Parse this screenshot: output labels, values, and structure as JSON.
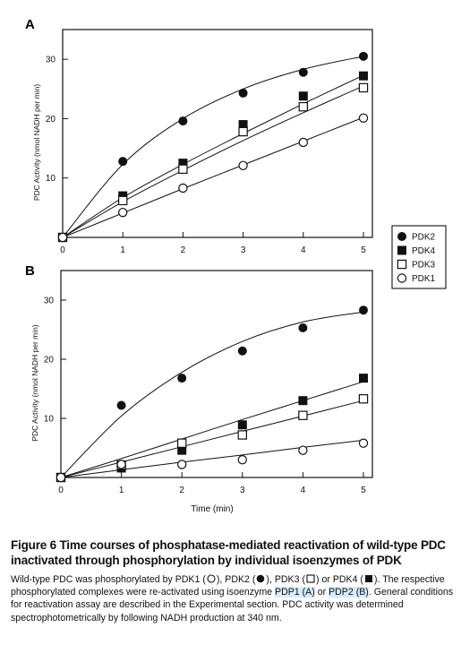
{
  "chart_data": [
    {
      "panel": "A",
      "type": "scatter",
      "title": "",
      "xlabel": "",
      "ylabel": "PDC Activity (nmol NADH per min)",
      "xlim": [
        0,
        5
      ],
      "ylim": [
        0,
        35
      ],
      "xticks": [
        0,
        1,
        2,
        3,
        4,
        5
      ],
      "yticks": [
        10,
        20,
        30
      ],
      "grid": false,
      "series": [
        {
          "name": "PDK2",
          "marker": "filled-circle",
          "x": [
            0,
            1,
            2,
            3,
            4,
            5
          ],
          "y": [
            0,
            12.8,
            19.6,
            24.3,
            27.8,
            30.5
          ]
        },
        {
          "name": "PDK4",
          "marker": "filled-square",
          "x": [
            0,
            1,
            2,
            3,
            4,
            5
          ],
          "y": [
            0,
            7.0,
            12.5,
            19.0,
            23.8,
            27.2
          ]
        },
        {
          "name": "PDK3",
          "marker": "open-square",
          "x": [
            0,
            1,
            2,
            3,
            4,
            5
          ],
          "y": [
            0,
            6.2,
            11.5,
            17.8,
            22.0,
            25.2
          ]
        },
        {
          "name": "PDK1",
          "marker": "open-circle",
          "x": [
            0,
            1,
            2,
            3,
            4,
            5
          ],
          "y": [
            0,
            4.2,
            8.3,
            12.1,
            16.0,
            20.1
          ]
        }
      ],
      "fits": {
        "PDK2": [
          0,
          1,
          2,
          3,
          4,
          5
        ],
        "PDK2_y": [
          0,
          12.3,
          20.0,
          25.0,
          28.3,
          30.5
        ],
        "PDK4_y": [
          0,
          6.7,
          12.3,
          17.5,
          22.5,
          27.3
        ],
        "PDK3_y": [
          0,
          6.0,
          11.3,
          16.3,
          21.0,
          25.5
        ],
        "PDK1_y": [
          0,
          4.1,
          8.2,
          12.2,
          16.2,
          20.2
        ]
      }
    },
    {
      "panel": "B",
      "type": "scatter",
      "title": "",
      "xlabel": "Time (min)",
      "ylabel": "PDC Activity (nmol NADH per min)",
      "xlim": [
        0,
        5
      ],
      "ylim": [
        0,
        35
      ],
      "xticks": [
        0,
        1,
        2,
        3,
        4,
        5
      ],
      "yticks": [
        10,
        20,
        30
      ],
      "grid": false,
      "series": [
        {
          "name": "PDK2",
          "marker": "filled-circle",
          "x": [
            0,
            1,
            2,
            3,
            4,
            5
          ],
          "y": [
            0,
            12.2,
            16.8,
            21.4,
            25.3,
            28.3
          ]
        },
        {
          "name": "PDK4",
          "marker": "filled-square",
          "x": [
            0,
            1,
            2,
            3,
            4,
            5
          ],
          "y": [
            0,
            1.6,
            4.6,
            8.9,
            13.0,
            16.8
          ]
        },
        {
          "name": "PDK3",
          "marker": "open-square",
          "x": [
            0,
            1,
            2,
            3,
            4,
            5
          ],
          "y": [
            0,
            2.1,
            5.8,
            7.2,
            10.5,
            13.3
          ]
        },
        {
          "name": "PDK1",
          "marker": "open-circle",
          "x": [
            0,
            1,
            2,
            3,
            4,
            5
          ],
          "y": [
            0,
            2.2,
            2.2,
            3.0,
            4.6,
            5.8
          ]
        }
      ],
      "fits": {
        "PDK2_y": [
          0,
          10.4,
          17.8,
          23.0,
          26.3,
          28.0
        ],
        "PDK4_y": [
          0,
          3.2,
          6.5,
          9.8,
          13.0,
          16.2
        ],
        "PDK3_y": [
          0,
          2.6,
          5.2,
          7.8,
          10.4,
          13.0
        ],
        "PDK1_y": [
          0,
          1.3,
          2.6,
          3.8,
          5.1,
          6.3
        ]
      }
    }
  ],
  "legend": {
    "placement": "right, between panels",
    "entries": [
      {
        "label": "PDK2",
        "marker": "filled-circle"
      },
      {
        "label": "PDK4",
        "marker": "filled-square"
      },
      {
        "label": "PDK3",
        "marker": "open-square"
      },
      {
        "label": "PDK1",
        "marker": "open-circle"
      }
    ]
  },
  "panels": {
    "a_letter": "A",
    "b_letter": "B"
  },
  "caption": {
    "title": "Figure 6    Time courses of phosphatase-mediated reactivation of wild-type PDC inactivated through phosphorylation by individual isoenzymes of PDK",
    "body_1": "Wild-type PDC was phosphorylated by PDK1 (",
    "body_2": "), PDK2 (",
    "body_3": "), PDK3 (",
    "body_4": ") or PDK4 (",
    "body_5": "). The respective phosphorylated complexes were re-activated using isoenzyme ",
    "hl_1": "PDP1 (A)",
    "body_6": " or ",
    "hl_2": "PDP2 (B)",
    "body_7": ". General conditions for reactivation assay are described in the Experimental section. PDC activity was determined spectrophotometrically by following NADH production at 340 nm."
  }
}
